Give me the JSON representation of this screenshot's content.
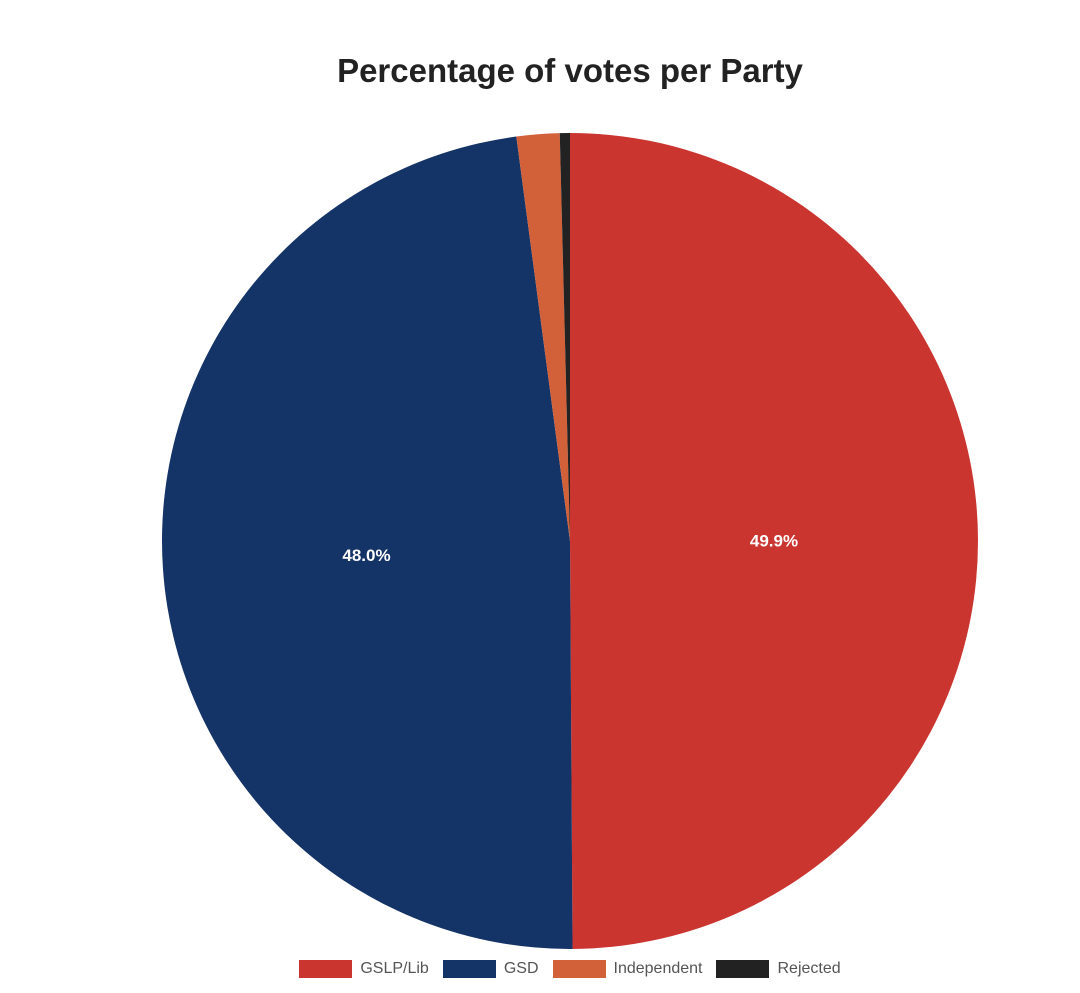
{
  "chart_data": {
    "type": "pie",
    "title": "Percentage of votes per Party",
    "categories": [
      "GSLP/Lib",
      "GSD",
      "Independent",
      "Rejected"
    ],
    "values": [
      49.9,
      48.0,
      1.7,
      0.4
    ],
    "labels": [
      "49.9%",
      "48.0%",
      "",
      ""
    ],
    "colors": [
      "#cb3530",
      "#143366",
      "#d2613a",
      "#222222"
    ],
    "legend_position": "bottom"
  }
}
